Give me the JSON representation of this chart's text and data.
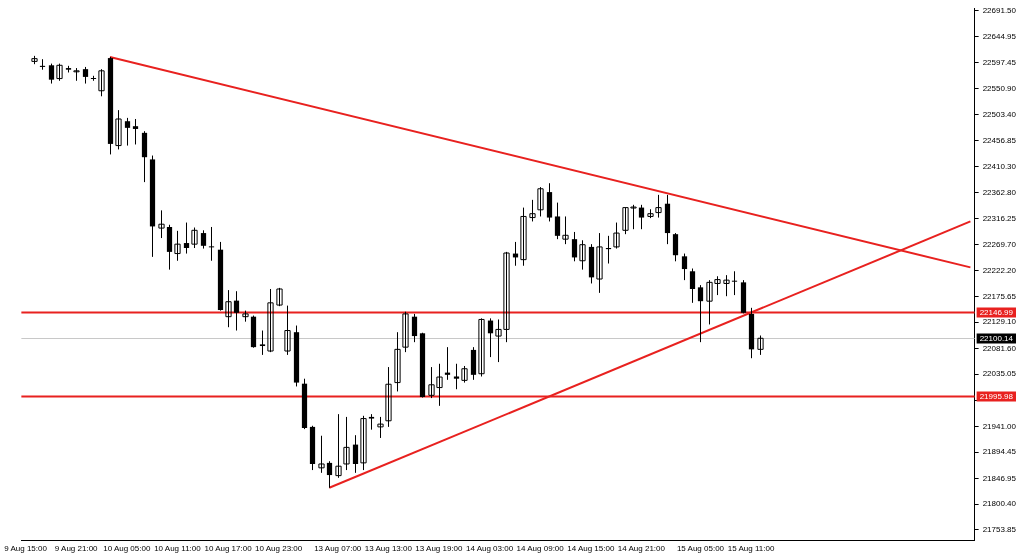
{
  "chart_data": {
    "type": "candlestick",
    "categories": [
      "9 Aug 15:00",
      null,
      null,
      null,
      null,
      null,
      "9 Aug 21:00",
      null,
      null,
      null,
      null,
      null,
      "10 Aug 05:00",
      null,
      null,
      null,
      null,
      null,
      "10 Aug 11:00",
      null,
      null,
      null,
      null,
      null,
      "10 Aug 17:00",
      null,
      null,
      null,
      null,
      null,
      "10 Aug 23:00",
      null,
      null,
      null,
      null,
      null,
      null,
      "13 Aug 07:00",
      null,
      null,
      null,
      null,
      null,
      "13 Aug 13:00",
      null,
      null,
      null,
      null,
      null,
      "13 Aug 19:00",
      null,
      null,
      null,
      null,
      null,
      "14 Aug 03:00",
      null,
      null,
      null,
      null,
      null,
      "14 Aug 09:00",
      null,
      null,
      null,
      null,
      null,
      "14 Aug 15:00",
      null,
      null,
      null,
      null,
      null,
      "14 Aug 21:00",
      null,
      null,
      null,
      null,
      null,
      null,
      "15 Aug 05:00",
      null,
      null,
      null,
      null,
      null,
      "15 Aug 11:00",
      null,
      null,
      null,
      null,
      null,
      null,
      null,
      null,
      null,
      null,
      null,
      null,
      null,
      null,
      null,
      null,
      null,
      null,
      null,
      null,
      null,
      null,
      null,
      null,
      null,
      null
    ],
    "ohlc": [
      null,
      [
        22600,
        22610,
        22595,
        22605
      ],
      [
        22592,
        22604,
        22585,
        22590
      ],
      [
        22593,
        22596,
        22560,
        22567
      ],
      [
        22569,
        22596,
        22565,
        22593
      ],
      [
        22588,
        22592,
        22580,
        22585
      ],
      [
        22582,
        22588,
        22565,
        22583
      ],
      [
        22586,
        22590,
        22560,
        22572
      ],
      [
        22570,
        22574,
        22565,
        22569
      ],
      [
        22547,
        22586,
        22537,
        22583
      ],
      [
        22606,
        22608,
        22432,
        22451
      ],
      [
        22448,
        22512,
        22441,
        22496
      ],
      [
        22492,
        22498,
        22448,
        22480
      ],
      [
        22483,
        22496,
        22450,
        22478
      ],
      [
        22471,
        22474,
        22382,
        22427
      ],
      [
        22423,
        22430,
        22247,
        22302
      ],
      [
        22299,
        22331,
        22281,
        22306
      ],
      [
        22301,
        22305,
        22224,
        22256
      ],
      [
        22253,
        22294,
        22240,
        22270
      ],
      [
        22272,
        22309,
        22253,
        22263
      ],
      [
        22270,
        22300,
        22263,
        22295
      ],
      [
        22290,
        22295,
        22262,
        22267
      ],
      [
        22266,
        22301,
        22240,
        22265
      ],
      [
        22260,
        22274,
        22150,
        22151
      ],
      [
        22139,
        22187,
        22120,
        22166
      ],
      [
        22168,
        22185,
        22114,
        22146
      ],
      [
        22139,
        22150,
        22130,
        22144
      ],
      [
        22139,
        22141,
        22083,
        22084
      ],
      [
        22089,
        22114,
        22070,
        22086
      ],
      [
        22077,
        22189,
        22075,
        22164
      ],
      [
        22160,
        22191,
        22158,
        22189
      ],
      [
        22077,
        22159,
        22070,
        22114
      ],
      [
        22111,
        22123,
        22013,
        22020
      ],
      [
        22018,
        22027,
        21936,
        21938
      ],
      [
        21940,
        21942,
        21862,
        21873
      ],
      [
        21866,
        21924,
        21857,
        21873
      ],
      [
        21875,
        21878,
        21830,
        21853
      ],
      [
        21852,
        21963,
        21848,
        21869
      ],
      [
        21873,
        21958,
        21862,
        21903
      ],
      [
        21908,
        21925,
        21857,
        21873
      ],
      [
        21875,
        21960,
        21862,
        21955
      ],
      [
        21958,
        21963,
        21935,
        21955
      ],
      [
        21940,
        21958,
        21920,
        21945
      ],
      [
        21951,
        22048,
        21940,
        22017
      ],
      [
        22020,
        22111,
        22004,
        22080
      ],
      [
        22084,
        22148,
        22075,
        22144
      ],
      [
        22139,
        22144,
        22093,
        22104
      ],
      [
        22109,
        22110,
        21993,
        21994
      ],
      [
        21997,
        22048,
        21992,
        22016
      ],
      [
        22011,
        22054,
        21978,
        22030
      ],
      [
        22038,
        22084,
        22025,
        22034
      ],
      [
        22031,
        22054,
        22008,
        22027
      ],
      [
        22024,
        22050,
        22020,
        22045
      ],
      [
        22079,
        22084,
        22025,
        22034
      ],
      [
        22036,
        22136,
        22031,
        22134
      ],
      [
        22132,
        22136,
        22066,
        22109
      ],
      [
        22104,
        22134,
        22057,
        22116
      ],
      [
        22116,
        22256,
        22093,
        22254
      ],
      [
        22253,
        22274,
        22231,
        22246
      ],
      [
        22242,
        22336,
        22231,
        22320
      ],
      [
        22318,
        22350,
        22311,
        22325
      ],
      [
        22332,
        22373,
        22320,
        22370
      ],
      [
        22364,
        22380,
        22311,
        22318
      ],
      [
        22320,
        22345,
        22279,
        22285
      ],
      [
        22279,
        22320,
        22270,
        22286
      ],
      [
        22279,
        22292,
        22239,
        22246
      ],
      [
        22240,
        22277,
        22224,
        22269
      ],
      [
        22265,
        22270,
        22199,
        22210
      ],
      [
        22207,
        22290,
        22182,
        22265
      ],
      [
        22263,
        22285,
        22235,
        22261
      ],
      [
        22265,
        22309,
        22262,
        22290
      ],
      [
        22295,
        22336,
        22288,
        22336
      ],
      [
        22336,
        22341,
        22297,
        22337
      ],
      [
        22336,
        22341,
        22297,
        22318
      ],
      [
        22320,
        22333,
        22317,
        22325
      ],
      [
        22327,
        22359,
        22318,
        22336
      ],
      [
        22343,
        22359,
        22270,
        22290
      ],
      [
        22288,
        22290,
        22239,
        22250
      ],
      [
        22248,
        22253,
        22205,
        22225
      ],
      [
        22221,
        22226,
        22164,
        22189
      ],
      [
        22192,
        22196,
        22093,
        22167
      ],
      [
        22167,
        22205,
        22125,
        22201
      ],
      [
        22199,
        22212,
        22178,
        22206
      ],
      [
        22199,
        22214,
        22176,
        22205
      ],
      [
        22204,
        22221,
        22178,
        22203
      ],
      [
        22201,
        22205,
        22145,
        22146
      ],
      [
        22144,
        22155,
        22064,
        22080
      ],
      [
        22080,
        22105,
        22070,
        22100
      ],
      null,
      null,
      null,
      null,
      null,
      null,
      null,
      null,
      null,
      null,
      null,
      null,
      null,
      null,
      null,
      null,
      null,
      null,
      null,
      null,
      null,
      null,
      null,
      null,
      null
    ],
    "color": "#000000",
    "series": [
      {
        "type": "line",
        "color": "#e8211f",
        "values": [
          null,
          null,
          null,
          null,
          null,
          null,
          null,
          null,
          null,
          null,
          22608,
          null,
          null,
          null,
          null,
          null,
          null,
          null,
          null,
          null,
          null,
          null,
          null,
          null,
          null,
          null,
          null,
          null,
          null,
          null,
          null,
          null,
          null,
          null,
          null,
          null,
          null,
          null,
          null,
          null,
          null,
          null,
          null,
          null,
          null,
          null,
          null,
          null,
          null,
          null,
          null,
          null,
          null,
          null,
          null,
          null,
          null,
          null,
          null,
          null,
          null,
          null,
          null,
          null,
          null,
          null,
          null,
          null,
          null,
          null,
          null,
          null,
          null,
          null,
          null,
          null,
          null,
          null,
          null,
          null,
          null,
          null,
          null,
          null,
          null,
          null,
          null,
          null,
          null,
          null,
          null,
          null,
          null,
          null,
          null,
          null,
          null,
          null,
          null,
          null,
          null,
          null,
          null,
          null,
          null,
          null,
          null,
          null,
          null,
          null,
          null,
          null,
          22228
        ]
      },
      {
        "type": "line",
        "color": "#e8211f",
        "values": [
          null,
          null,
          null,
          null,
          null,
          null,
          null,
          null,
          null,
          null,
          null,
          null,
          null,
          null,
          null,
          null,
          null,
          null,
          null,
          null,
          null,
          null,
          null,
          null,
          null,
          null,
          null,
          null,
          null,
          null,
          null,
          null,
          null,
          null,
          null,
          null,
          21830,
          null,
          null,
          null,
          null,
          null,
          null,
          null,
          null,
          null,
          null,
          null,
          null,
          null,
          null,
          null,
          null,
          null,
          null,
          null,
          null,
          null,
          null,
          null,
          null,
          null,
          null,
          null,
          null,
          null,
          null,
          null,
          null,
          null,
          null,
          null,
          null,
          null,
          null,
          null,
          null,
          null,
          null,
          null,
          null,
          null,
          null,
          null,
          null,
          null,
          null,
          null,
          null,
          null,
          null,
          null,
          null,
          null,
          null,
          null,
          null,
          null,
          null,
          null,
          null,
          null,
          null,
          null,
          null,
          null,
          null,
          null,
          null,
          null,
          null,
          null,
          22311
        ]
      }
    ],
    "ref_lines": [
      {
        "axis": "y",
        "value": 22146.99,
        "label": "22146.99",
        "color": "#e8211f"
      },
      {
        "axis": "y",
        "value": 21995.98,
        "label": "21995.98",
        "color": "#e8211f"
      },
      {
        "axis": "y",
        "value": 22100.14,
        "label": "22100.14",
        "color": "#c8c8c8"
      }
    ],
    "ylim": [
      21735,
      22695
    ],
    "yticks": [
      {
        "value": 22691.5,
        "label": "22691.50"
      },
      {
        "value": 22644.95,
        "label": "22644.95"
      },
      {
        "value": 22597.45,
        "label": "22597.45"
      },
      {
        "value": 22550.9,
        "label": "22550.90"
      },
      {
        "value": 22503.4,
        "label": "22503.40"
      },
      {
        "value": 22456.85,
        "label": "22456.85"
      },
      {
        "value": 22410.3,
        "label": "22410.30"
      },
      {
        "value": 22362.8,
        "label": "22362.80"
      },
      {
        "value": 22316.25,
        "label": "22316.25"
      },
      {
        "value": 22269.7,
        "label": "22269.70"
      },
      {
        "value": 22222.2,
        "label": "22222.20"
      },
      {
        "value": 22175.65,
        "label": "22175.65"
      },
      {
        "value": 22129.1,
        "label": "22129.10"
      },
      {
        "value": 22081.6,
        "label": "22081.60"
      },
      {
        "value": 22035.05,
        "label": "22035.05"
      },
      {
        "value": 21987.55,
        "label": null
      },
      {
        "value": 21941,
        "label": "21941.00"
      },
      {
        "value": 21894.45,
        "label": "21894.45"
      },
      {
        "value": 21846.95,
        "label": "21846.95"
      },
      {
        "value": 21800.4,
        "label": "21800.40"
      },
      {
        "value": 21753.85,
        "label": "21753.85"
      }
    ]
  }
}
